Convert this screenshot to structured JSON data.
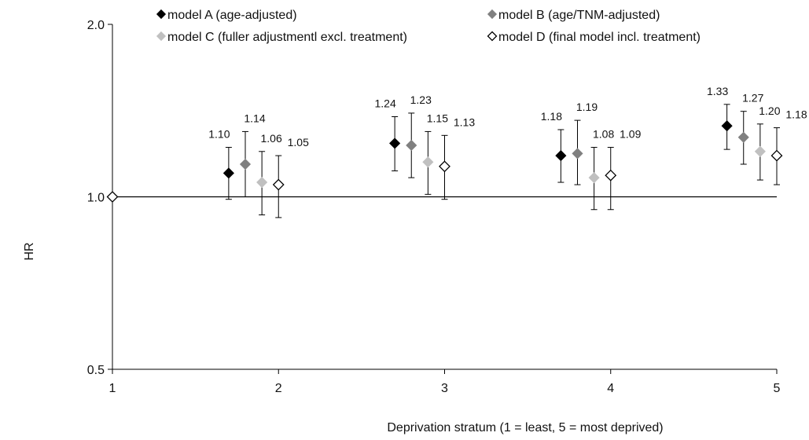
{
  "chart_data": {
    "type": "scatter",
    "title": "",
    "xlabel": "Deprivation stratum (1 = least, 5 = most deprived)",
    "ylabel": "HR",
    "y_scale": "log",
    "ylim": [
      0.5,
      2.0
    ],
    "xlim": [
      1,
      5
    ],
    "y_ticks": [
      "0.5",
      "1.0",
      "2.0"
    ],
    "x_ticks": [
      "1",
      "2",
      "3",
      "4",
      "5"
    ],
    "reference_line": 1.0,
    "legend_position": "top",
    "reference_point": {
      "x": 1,
      "y": 1.0
    },
    "series": [
      {
        "name": "model A (age-adjusted)",
        "marker": "diamond-filled",
        "color": "#000000",
        "x_offset": -0.3,
        "points": [
          {
            "x": 2,
            "hr": 1.1,
            "label": "1.10",
            "lo": 0.99,
            "hi": 1.22
          },
          {
            "x": 3,
            "hr": 1.24,
            "label": "1.24",
            "lo": 1.11,
            "hi": 1.38
          },
          {
            "x": 4,
            "hr": 1.18,
            "label": "1.18",
            "lo": 1.06,
            "hi": 1.31
          },
          {
            "x": 5,
            "hr": 1.33,
            "label": "1.33",
            "lo": 1.21,
            "hi": 1.45
          }
        ]
      },
      {
        "name": "model B (age/TNM-adjusted)",
        "marker": "diamond-filled",
        "color": "#808080",
        "x_offset": -0.2,
        "points": [
          {
            "x": 2,
            "hr": 1.14,
            "label": "1.14",
            "lo": 1.0,
            "hi": 1.3
          },
          {
            "x": 3,
            "hr": 1.23,
            "label": "1.23",
            "lo": 1.08,
            "hi": 1.4
          },
          {
            "x": 4,
            "hr": 1.19,
            "label": "1.19",
            "lo": 1.05,
            "hi": 1.36
          },
          {
            "x": 5,
            "hr": 1.27,
            "label": "1.27",
            "lo": 1.14,
            "hi": 1.41
          }
        ]
      },
      {
        "name": "model C (fuller adjustmentl excl. treatment)",
        "marker": "diamond-filled",
        "color": "#c0c0c0",
        "x_offset": -0.1,
        "points": [
          {
            "x": 2,
            "hr": 1.06,
            "label": "1.06",
            "lo": 0.93,
            "hi": 1.2
          },
          {
            "x": 3,
            "hr": 1.15,
            "label": "1.15",
            "lo": 1.01,
            "hi": 1.3
          },
          {
            "x": 4,
            "hr": 1.08,
            "label": "1.08",
            "lo": 0.95,
            "hi": 1.22
          },
          {
            "x": 5,
            "hr": 1.2,
            "label": "1.20",
            "lo": 1.07,
            "hi": 1.34
          }
        ]
      },
      {
        "name": "model D (final model incl. treatment)",
        "marker": "diamond-open",
        "color": "#000000",
        "x_offset": 0.0,
        "points": [
          {
            "x": 2,
            "hr": 1.05,
            "label": "1.05",
            "lo": 0.92,
            "hi": 1.18
          },
          {
            "x": 3,
            "hr": 1.13,
            "label": "1.13",
            "lo": 0.99,
            "hi": 1.28
          },
          {
            "x": 4,
            "hr": 1.09,
            "label": "1.09",
            "lo": 0.95,
            "hi": 1.22
          },
          {
            "x": 5,
            "hr": 1.18,
            "label": "1.18",
            "lo": 1.05,
            "hi": 1.32
          }
        ]
      }
    ]
  }
}
